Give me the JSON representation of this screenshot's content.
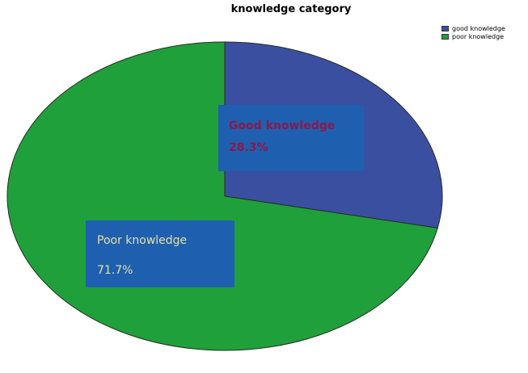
{
  "chart_data": {
    "type": "pie",
    "title": "knowledge category",
    "categories": [
      "good knowledge",
      "poor knowledge"
    ],
    "values": [
      28.3,
      71.7
    ],
    "colors": [
      "#3a4fa0",
      "#1fa03a"
    ],
    "legend_position": "top-right",
    "data_labels": [
      {
        "name": "Good knowledge",
        "value": "28.3%",
        "text_color": "#8b1a4a",
        "box_color": "#1f5fb0"
      },
      {
        "name": "Poor knowledge",
        "value": "71.7%",
        "text_color": "#e8e0a0",
        "box_color": "#1f5fb0"
      }
    ]
  }
}
